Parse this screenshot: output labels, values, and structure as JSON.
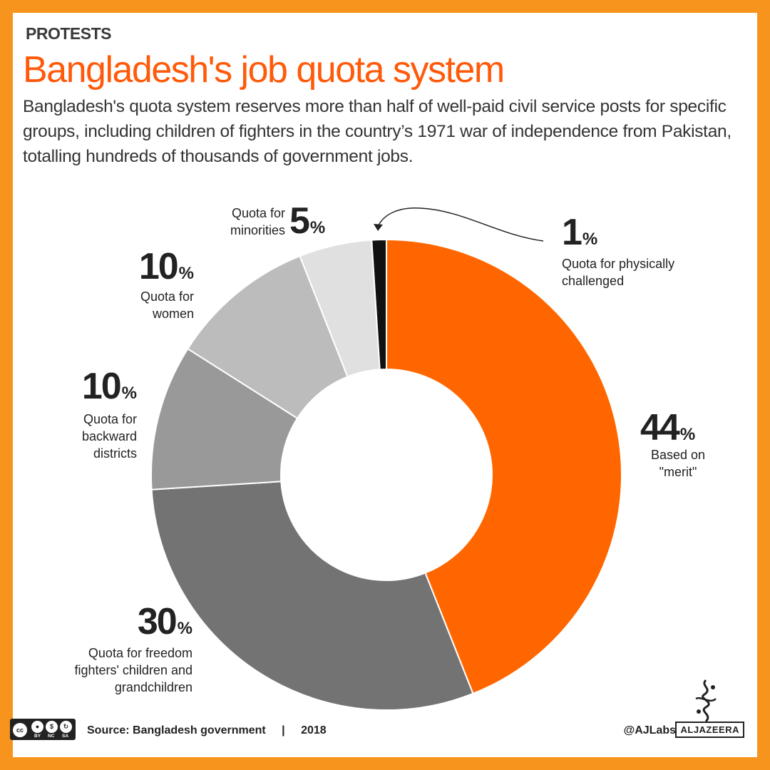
{
  "header": {
    "kicker": "PROTESTS",
    "title": "Bangladesh's job quota system",
    "subtitle": "Bangladesh's quota system reserves more than half of well-paid civil service posts for specific groups, including children of fighters in the country’s 1971 war of independence from Pakistan, totalling hundreds of thousands of government jobs."
  },
  "chart_data": {
    "type": "pie",
    "donut": true,
    "unit": "%",
    "colors": {
      "accent": "#ff6600",
      "border": "#f7941d",
      "title": "#ff5a0a"
    },
    "slices": [
      {
        "label": "Based on \"merit\"",
        "value": 44,
        "color": "#ff6600",
        "value_text": "44",
        "label_lines": [
          "Based on",
          "\"merit\""
        ]
      },
      {
        "label": "Quota for freedom fighters' children and grandchildren",
        "value": 30,
        "color": "#737373",
        "value_text": "30",
        "label_lines": [
          "Quota for freedom",
          "fighters' children and",
          "grandchildren"
        ]
      },
      {
        "label": "Quota for backward districts",
        "value": 10,
        "color": "#999999",
        "value_text": "10",
        "label_lines": [
          "Quota for",
          "backward",
          "districts"
        ]
      },
      {
        "label": "Quota for women",
        "value": 10,
        "color": "#bcbcbc",
        "value_text": "10",
        "label_lines": [
          "Quota for",
          "women"
        ]
      },
      {
        "label": "Quota for minorities",
        "value": 5,
        "color": "#e0e0e0",
        "value_text": "5",
        "label_lines": [
          "Quota for",
          "minorities"
        ]
      },
      {
        "label": "Quota for physically challenged",
        "value": 1,
        "color": "#111111",
        "value_text": "1",
        "label_lines": [
          "Quota for physically",
          "challenged"
        ]
      }
    ]
  },
  "footer": {
    "license_tags": [
      "BY",
      "NC",
      "SA"
    ],
    "license_mark": "cc",
    "source": "Source:  Bangladesh government",
    "separator": "|",
    "year": "2018",
    "handle": "@AJLabs",
    "brand": "ALJAZEERA"
  }
}
